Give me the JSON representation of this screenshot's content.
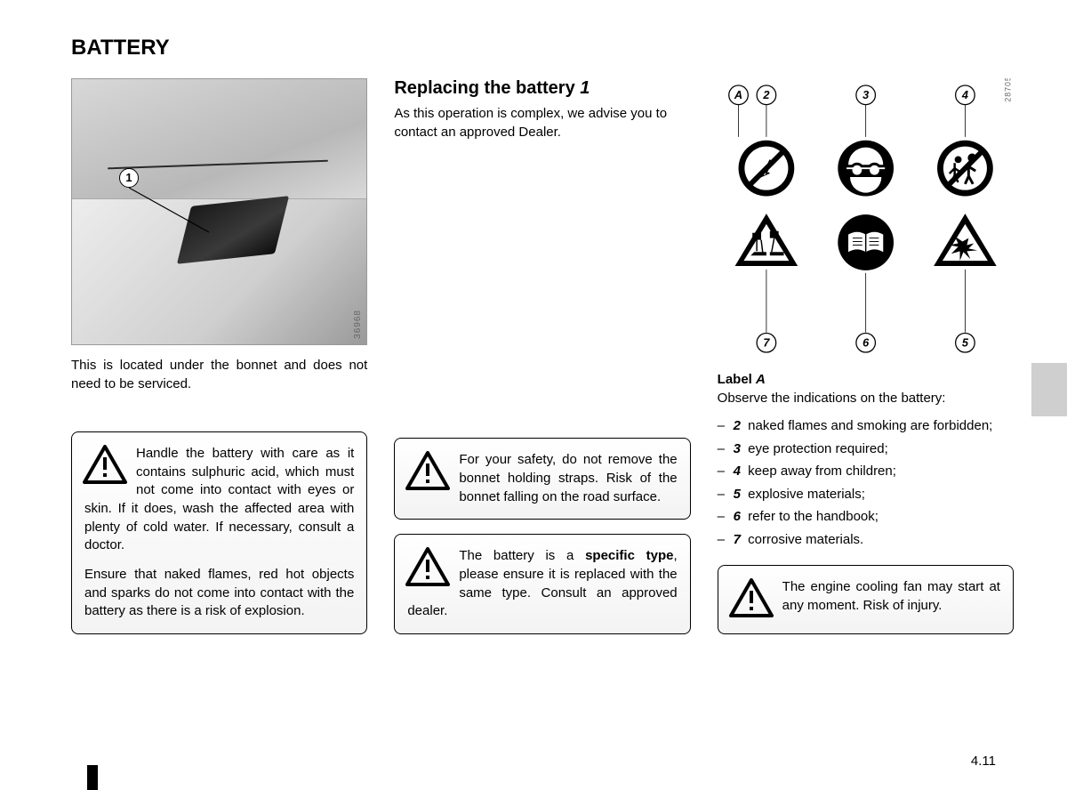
{
  "title": "BATTERY",
  "page_number": "4.11",
  "col1": {
    "figure_code": "36968",
    "callout": "1",
    "caption": "This is located under the bonnet and does not need to be serviced.",
    "warning_p1": "Handle the battery with care as it contains sulphuric acid, which must not come into contact with eyes or skin. If it does, wash the affected area with plenty of cold water. If necessary, consult a doctor.",
    "warning_p2": "Ensure that naked flames, red hot objects and sparks do not come into contact with the battery as there is a risk of explosion."
  },
  "col2": {
    "heading_a": "Replacing the battery ",
    "heading_b": "1",
    "intro": "As this operation is complex, we advise you to contact an approved Dealer.",
    "warn1": "For your safety, do not remove the bonnet holding straps. Risk of the bonnet falling on the road surface.",
    "warn2_a": "The battery is a ",
    "warn2_b": "specific type",
    "warn2_c": ", please ensure it is replaced with the same type. Consult an approved dealer."
  },
  "col3": {
    "figure_code": "28705",
    "marks": {
      "A": "A",
      "m2": "2",
      "m3": "3",
      "m4": "4",
      "m5": "5",
      "m6": "6",
      "m7": "7"
    },
    "label_title_a": "Label ",
    "label_title_b": "A",
    "label_line": "Observe the indications on the battery:",
    "items": [
      {
        "n": "2",
        "t": "naked flames and smoking are forbidden;"
      },
      {
        "n": "3",
        "t": "eye protection required;"
      },
      {
        "n": "4",
        "t": "keep away from children;"
      },
      {
        "n": "5",
        "t": "explosive materials;"
      },
      {
        "n": "6",
        "t": "refer to the handbook;"
      },
      {
        "n": "7",
        "t": "corrosive materials."
      }
    ],
    "warn": "The engine cooling fan may start at any moment. Risk of injury."
  }
}
